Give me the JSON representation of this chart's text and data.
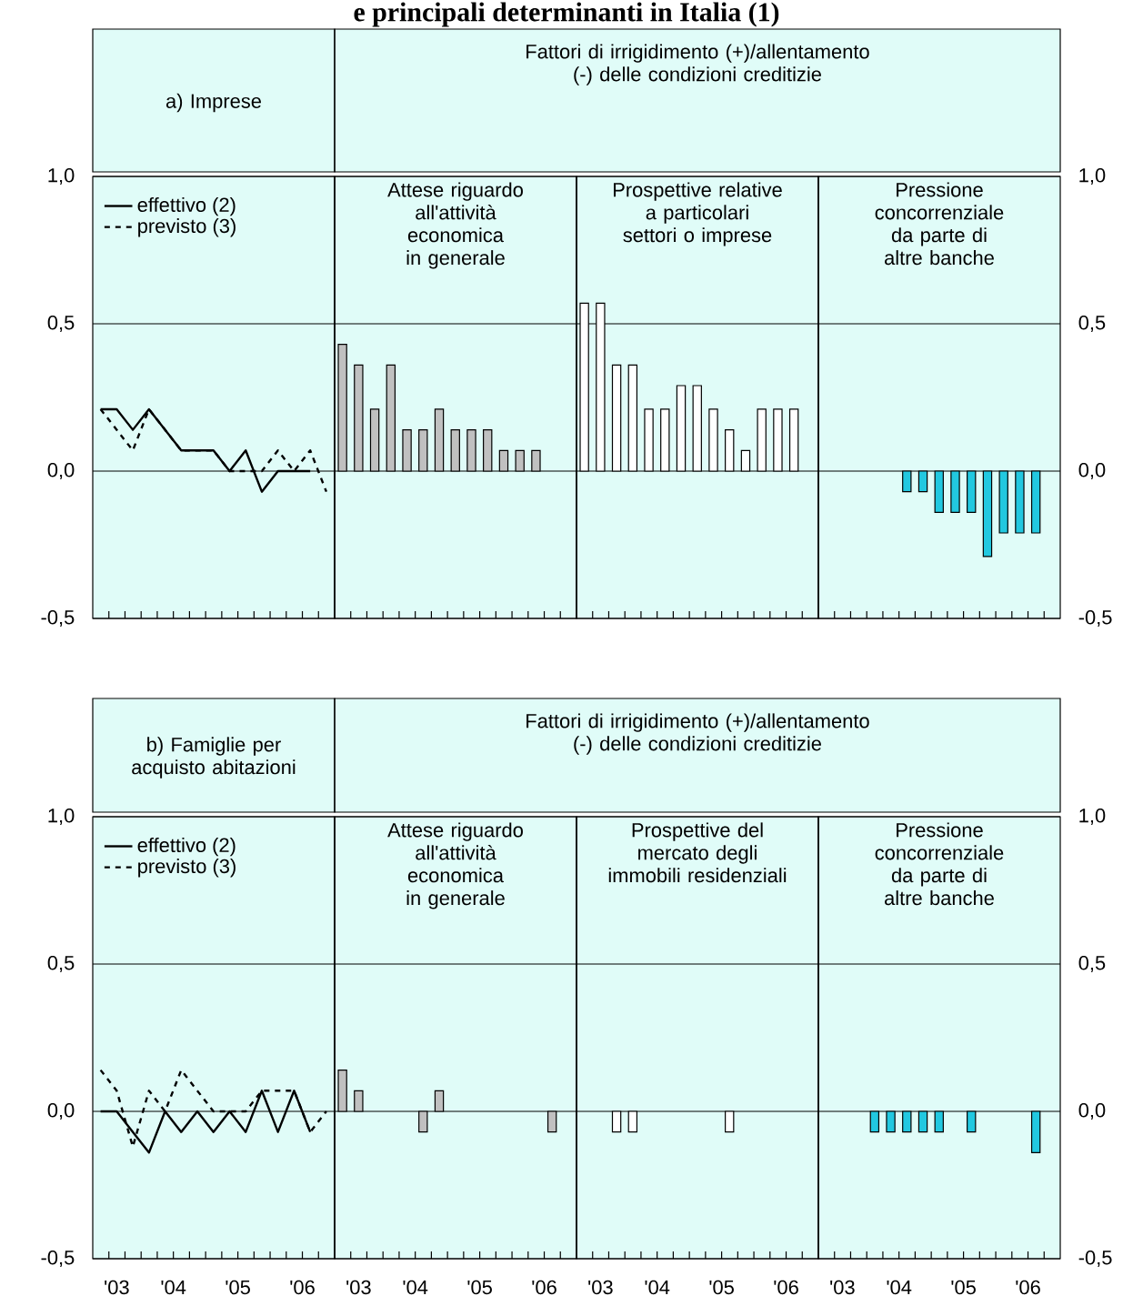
{
  "chart_data": [
    {
      "type": "line",
      "title": "a) Imprese",
      "annotations": [
        "e principali determinanti in Italia (1)"
      ],
      "x": [
        "2003-05-15",
        "2003-08-15",
        "2003-11-15",
        "2004-02-15",
        "2004-05-15",
        "2004-08-15",
        "2004-11-15",
        "2005-02-15",
        "2005-05-15",
        "2005-08-15",
        "2005-11-15",
        "2006-02-15",
        "2006-05-15",
        "2006-08-15",
        "2006-11-15"
      ],
      "xlim": [
        "2003-04-01",
        "2007-01-01"
      ],
      "xticks": [
        {
          "value": "2003-07-01",
          "label": null
        },
        {
          "value": "2003-10-01",
          "label": null
        },
        {
          "value": "2004-01-01",
          "label": null
        },
        {
          "value": "2004-04-01",
          "label": null
        },
        {
          "value": "2004-07-01",
          "label": null
        },
        {
          "value": "2004-10-01",
          "label": null
        },
        {
          "value": "2005-01-01",
          "label": null
        },
        {
          "value": "2005-04-01",
          "label": null
        },
        {
          "value": "2005-07-01",
          "label": null
        },
        {
          "value": "2005-10-01",
          "label": null
        },
        {
          "value": "2006-01-01",
          "label": null
        },
        {
          "value": "2006-04-01",
          "label": null
        },
        {
          "value": "2006-07-01",
          "label": null
        },
        {
          "value": "2006-10-01",
          "label": null
        }
      ],
      "ylim": [
        -0.5,
        1.0
      ],
      "yticks": [
        {
          "value": -0.5,
          "label": "-0,5"
        },
        {
          "value": 0,
          "label": "0,0"
        },
        {
          "value": 0.5,
          "label": "0,5"
        },
        {
          "value": 1.0,
          "label": "1,0"
        }
      ],
      "grid": "y",
      "legend": "top left",
      "tick_labels": "y",
      "series": [
        {
          "name": "effettivo (2)",
          "color": "#000000",
          "line_style": "solid",
          "values": [
            0.21,
            0.21,
            0.14,
            0.21,
            0.14,
            0.07,
            0.07,
            0.07,
            0.0,
            0.07,
            -0.07,
            0.0,
            0.0,
            0.0,
            null
          ]
        },
        {
          "name": "previsto (3)",
          "color": "#000000",
          "line_style": "dashed",
          "values": [
            0.21,
            0.14,
            0.07,
            0.21,
            0.14,
            0.07,
            0.07,
            0.07,
            0.0,
            0.0,
            0.0,
            0.07,
            0.0,
            0.07,
            -0.07
          ]
        }
      ]
    },
    {
      "type": "bar",
      "title": "Attese riguardo all'attività economica in generale",
      "subtitle": "Fattori di irrigidimento (+)/allentamento (-) delle condizioni creditizie",
      "x": [
        "2003-05-15",
        "2003-08-15",
        "2003-11-15",
        "2004-02-15",
        "2004-05-15",
        "2004-08-15",
        "2004-11-15",
        "2005-02-15",
        "2005-05-15",
        "2005-08-15",
        "2005-11-15",
        "2006-02-15",
        "2006-05-15"
      ],
      "xlim": [
        "2003-04-01",
        "2007-01-01"
      ],
      "xticks": [
        {
          "value": "2003-07-01",
          "label": null
        },
        {
          "value": "2003-10-01",
          "label": null
        },
        {
          "value": "2004-01-01",
          "label": null
        },
        {
          "value": "2004-04-01",
          "label": null
        },
        {
          "value": "2004-07-01",
          "label": null
        },
        {
          "value": "2004-10-01",
          "label": null
        },
        {
          "value": "2005-01-01",
          "label": null
        },
        {
          "value": "2005-04-01",
          "label": null
        },
        {
          "value": "2005-07-01",
          "label": null
        },
        {
          "value": "2005-10-01",
          "label": null
        },
        {
          "value": "2006-01-01",
          "label": null
        },
        {
          "value": "2006-04-01",
          "label": null
        },
        {
          "value": "2006-07-01",
          "label": null
        },
        {
          "value": "2006-10-01",
          "label": null
        }
      ],
      "ylim": [
        -0.5,
        1.0
      ],
      "yticks": [
        -0.5,
        0,
        0.5,
        1.0
      ],
      "grid": "y",
      "tick_labels": false,
      "color": "#c0c0c0",
      "values": [
        0.43,
        0.36,
        0.21,
        0.36,
        0.14,
        0.14,
        0.21,
        0.14,
        0.14,
        0.14,
        0.07,
        0.07,
        0.07
      ]
    },
    {
      "type": "bar",
      "title": "Prospettive relative a particolari settori o imprese",
      "x": [
        "2003-05-15",
        "2003-08-15",
        "2003-11-15",
        "2004-02-15",
        "2004-05-15",
        "2004-08-15",
        "2004-11-15",
        "2005-02-15",
        "2005-05-15",
        "2005-08-15",
        "2005-11-15",
        "2006-02-15",
        "2006-05-15",
        "2006-08-15"
      ],
      "xlim": [
        "2003-04-01",
        "2007-01-01"
      ],
      "xticks": [
        {
          "value": "2003-07-01",
          "label": null
        },
        {
          "value": "2003-10-01",
          "label": null
        },
        {
          "value": "2004-01-01",
          "label": null
        },
        {
          "value": "2004-04-01",
          "label": null
        },
        {
          "value": "2004-07-01",
          "label": null
        },
        {
          "value": "2004-10-01",
          "label": null
        },
        {
          "value": "2005-01-01",
          "label": null
        },
        {
          "value": "2005-04-01",
          "label": null
        },
        {
          "value": "2005-07-01",
          "label": null
        },
        {
          "value": "2005-10-01",
          "label": null
        },
        {
          "value": "2006-01-01",
          "label": null
        },
        {
          "value": "2006-04-01",
          "label": null
        },
        {
          "value": "2006-07-01",
          "label": null
        },
        {
          "value": "2006-10-01",
          "label": null
        }
      ],
      "ylim": [
        -0.5,
        1.0
      ],
      "yticks": [
        -0.5,
        0,
        0.5,
        1.0
      ],
      "grid": "y",
      "tick_labels": false,
      "color": "#ffffff",
      "values": [
        0.57,
        0.57,
        0.36,
        0.36,
        0.21,
        0.21,
        0.29,
        0.29,
        0.21,
        0.14,
        0.07,
        0.21,
        0.21,
        0.21
      ]
    },
    {
      "type": "bar",
      "title": "Pressione concorrenziale da parte di altre banche",
      "x": [
        "2004-08-15",
        "2004-11-15",
        "2005-02-15",
        "2005-05-15",
        "2005-08-15",
        "2005-11-15",
        "2006-02-15",
        "2006-05-15",
        "2006-08-15"
      ],
      "xlim": [
        "2003-04-01",
        "2007-01-01"
      ],
      "xticks": [
        {
          "value": "2003-07-01",
          "label": null
        },
        {
          "value": "2003-10-01",
          "label": null
        },
        {
          "value": "2004-01-01",
          "label": null
        },
        {
          "value": "2004-04-01",
          "label": null
        },
        {
          "value": "2004-07-01",
          "label": null
        },
        {
          "value": "2004-10-01",
          "label": null
        },
        {
          "value": "2005-01-01",
          "label": null
        },
        {
          "value": "2005-04-01",
          "label": null
        },
        {
          "value": "2005-07-01",
          "label": null
        },
        {
          "value": "2005-10-01",
          "label": null
        },
        {
          "value": "2006-01-01",
          "label": null
        },
        {
          "value": "2006-04-01",
          "label": null
        },
        {
          "value": "2006-07-01",
          "label": null
        },
        {
          "value": "2006-10-01",
          "label": null
        }
      ],
      "ylim": [
        -0.5,
        1.0
      ],
      "yticks": [
        {
          "value": -0.5,
          "label": "-0,5"
        },
        {
          "value": 0,
          "label": "0,0"
        },
        {
          "value": 0.5,
          "label": "0,5"
        },
        {
          "value": 1.0,
          "label": "1,0"
        }
      ],
      "grid": "y",
      "tick_labels": "y",
      "color": "#22c8e0",
      "values": [
        -0.07,
        -0.07,
        -0.14,
        -0.14,
        -0.14,
        -0.29,
        -0.21,
        -0.21,
        -0.21
      ]
    },
    {
      "type": "line",
      "title": "b) Famiglie per acquisto abitazioni",
      "x": [
        "2003-05-15",
        "2003-08-15",
        "2003-11-15",
        "2004-02-15",
        "2004-05-15",
        "2004-08-15",
        "2004-11-15",
        "2005-02-15",
        "2005-05-15",
        "2005-08-15",
        "2005-11-15",
        "2006-02-15",
        "2006-05-15",
        "2006-08-15",
        "2006-11-15"
      ],
      "xlim": [
        "2003-04-01",
        "2007-01-01"
      ],
      "xticks": [
        {
          "value": "2003-08-15",
          "label": "'03"
        },
        {
          "value": "2004-07-01",
          "label": "'04"
        },
        {
          "value": "2005-07-01",
          "label": "'05"
        },
        {
          "value": "2006-07-01",
          "label": "'06"
        },
        {
          "value": "2003-07-01",
          "label": null
        },
        {
          "value": "2003-10-01",
          "label": null
        },
        {
          "value": "2004-01-01",
          "label": null
        },
        {
          "value": "2004-04-01",
          "label": null
        },
        {
          "value": "2004-07-01",
          "label": null
        },
        {
          "value": "2004-10-01",
          "label": null
        },
        {
          "value": "2005-01-01",
          "label": null
        },
        {
          "value": "2005-04-01",
          "label": null
        },
        {
          "value": "2005-07-01",
          "label": null
        },
        {
          "value": "2005-10-01",
          "label": null
        },
        {
          "value": "2006-01-01",
          "label": null
        },
        {
          "value": "2006-04-01",
          "label": null
        },
        {
          "value": "2006-07-01",
          "label": null
        },
        {
          "value": "2006-10-01",
          "label": null
        }
      ],
      "ylim": [
        -0.5,
        1.0
      ],
      "yticks": [
        {
          "value": -0.5,
          "label": "-0,5"
        },
        {
          "value": 0,
          "label": "0,0"
        },
        {
          "value": 0.5,
          "label": "0,5"
        },
        {
          "value": 1.0,
          "label": "1,0"
        }
      ],
      "grid": "y",
      "legend": "top left",
      "series": [
        {
          "name": "effettivo (2)",
          "color": "#000000",
          "line_style": "solid",
          "values": [
            0.0,
            0.0,
            -0.07,
            -0.14,
            0.0,
            -0.07,
            0.0,
            -0.07,
            0.0,
            -0.07,
            0.07,
            -0.07,
            0.07,
            -0.07,
            null
          ]
        },
        {
          "name": "previsto (3)",
          "color": "#000000",
          "line_style": "dashed",
          "values": [
            0.14,
            0.07,
            -0.12,
            0.07,
            0.0,
            0.14,
            0.07,
            0.0,
            0.0,
            0.0,
            0.07,
            0.07,
            0.07,
            -0.07,
            0.0
          ]
        }
      ]
    },
    {
      "type": "bar",
      "title": "Attese riguardo all'attività economica in generale",
      "subtitle": "Fattori di irrigidimento (+)/allentamento (-) delle condizioni creditizie",
      "x": [
        "2003-05-15",
        "2003-08-15",
        "2004-08-15",
        "2004-11-15",
        "2006-08-15"
      ],
      "xlim": [
        "2003-04-01",
        "2007-01-01"
      ],
      "xticks": [
        {
          "value": "2003-08-15",
          "label": "'03"
        },
        {
          "value": "2004-07-01",
          "label": "'04"
        },
        {
          "value": "2005-07-01",
          "label": "'05"
        },
        {
          "value": "2006-07-01",
          "label": "'06"
        },
        {
          "value": "2003-07-01",
          "label": null
        },
        {
          "value": "2003-10-01",
          "label": null
        },
        {
          "value": "2004-01-01",
          "label": null
        },
        {
          "value": "2004-04-01",
          "label": null
        },
        {
          "value": "2004-07-01",
          "label": null
        },
        {
          "value": "2004-10-01",
          "label": null
        },
        {
          "value": "2005-01-01",
          "label": null
        },
        {
          "value": "2005-04-01",
          "label": null
        },
        {
          "value": "2005-07-01",
          "label": null
        },
        {
          "value": "2005-10-01",
          "label": null
        },
        {
          "value": "2006-01-01",
          "label": null
        },
        {
          "value": "2006-04-01",
          "label": null
        },
        {
          "value": "2006-07-01",
          "label": null
        },
        {
          "value": "2006-10-01",
          "label": null
        }
      ],
      "ylim": [
        -0.5,
        1.0
      ],
      "yticks": [
        -0.5,
        0,
        0.5,
        1.0
      ],
      "grid": "y",
      "tick_labels": "x",
      "color": "#c0c0c0",
      "values": [
        0.14,
        0.07,
        -0.07,
        0.07,
        -0.07
      ]
    },
    {
      "type": "bar",
      "title": "Prospettive del mercato degli immobili residenziali",
      "x": [
        "2003-11-15",
        "2004-02-15",
        "2005-08-15"
      ],
      "xlim": [
        "2003-04-01",
        "2007-01-01"
      ],
      "xticks": [
        {
          "value": "2003-08-15",
          "label": "'03"
        },
        {
          "value": "2004-07-01",
          "label": "'04"
        },
        {
          "value": "2005-07-01",
          "label": "'05"
        },
        {
          "value": "2006-07-01",
          "label": "'06"
        },
        {
          "value": "2003-07-01",
          "label": null
        },
        {
          "value": "2003-10-01",
          "label": null
        },
        {
          "value": "2004-01-01",
          "label": null
        },
        {
          "value": "2004-04-01",
          "label": null
        },
        {
          "value": "2004-07-01",
          "label": null
        },
        {
          "value": "2004-10-01",
          "label": null
        },
        {
          "value": "2005-01-01",
          "label": null
        },
        {
          "value": "2005-04-01",
          "label": null
        },
        {
          "value": "2005-07-01",
          "label": null
        },
        {
          "value": "2005-10-01",
          "label": null
        },
        {
          "value": "2006-01-01",
          "label": null
        },
        {
          "value": "2006-04-01",
          "label": null
        },
        {
          "value": "2006-07-01",
          "label": null
        },
        {
          "value": "2006-10-01",
          "label": null
        }
      ],
      "ylim": [
        -0.5,
        1.0
      ],
      "yticks": [
        -0.5,
        0,
        0.5,
        1.0
      ],
      "grid": "y",
      "tick_labels": "x",
      "color": "#ffffff",
      "values": [
        -0.07,
        -0.07,
        -0.07
      ]
    },
    {
      "type": "bar",
      "title": "Pressione concorrenziale da parte di altre banche",
      "x": [
        "2004-02-15",
        "2004-05-15",
        "2004-08-15",
        "2004-11-15",
        "2005-02-15",
        "2005-08-15",
        "2006-08-15"
      ],
      "xlim": [
        "2003-04-01",
        "2007-01-01"
      ],
      "xticks": [
        {
          "value": "2003-08-15",
          "label": "'03"
        },
        {
          "value": "2004-07-01",
          "label": "'04"
        },
        {
          "value": "2005-07-01",
          "label": "'05"
        },
        {
          "value": "2006-07-01",
          "label": "'06"
        },
        {
          "value": "2003-07-01",
          "label": null
        },
        {
          "value": "2003-10-01",
          "label": null
        },
        {
          "value": "2004-01-01",
          "label": null
        },
        {
          "value": "2004-04-01",
          "label": null
        },
        {
          "value": "2004-07-01",
          "label": null
        },
        {
          "value": "2004-10-01",
          "label": null
        },
        {
          "value": "2005-01-01",
          "label": null
        },
        {
          "value": "2005-04-01",
          "label": null
        },
        {
          "value": "2005-07-01",
          "label": null
        },
        {
          "value": "2005-10-01",
          "label": null
        },
        {
          "value": "2006-01-01",
          "label": null
        },
        {
          "value": "2006-04-01",
          "label": null
        },
        {
          "value": "2006-07-01",
          "label": null
        },
        {
          "value": "2006-10-01",
          "label": null
        }
      ],
      "ylim": [
        -0.5,
        1.0
      ],
      "yticks": [
        {
          "value": -0.5,
          "label": "-0,5"
        },
        {
          "value": 0,
          "label": "0,0"
        },
        {
          "value": 0.5,
          "label": "0,5"
        },
        {
          "value": 1.0,
          "label": "1,0"
        }
      ],
      "grid": "y",
      "color": "#22c8e0",
      "values": [
        -0.07,
        -0.07,
        -0.07,
        -0.07,
        -0.07,
        -0.07,
        -0.14
      ]
    }
  ]
}
